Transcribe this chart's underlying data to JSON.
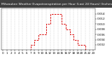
{
  "hours": [
    0,
    1,
    2,
    3,
    4,
    5,
    6,
    7,
    8,
    9,
    10,
    11,
    12,
    13,
    14,
    15,
    16,
    17,
    18,
    19,
    20,
    21,
    22,
    23
  ],
  "values": [
    0.0,
    0.0,
    0.0,
    0.0,
    0.0,
    0.0,
    0.0,
    0.002,
    0.004,
    0.006,
    0.006,
    0.01,
    0.014,
    0.014,
    0.014,
    0.01,
    0.008,
    0.006,
    0.004,
    0.002,
    0.002,
    0.0,
    0.0,
    0.0
  ],
  "line_color": "#dd0000",
  "bg_color": "#ffffff",
  "title": "Milwaukee Weather Evapotranspiration per Hour (Last 24 Hours) (Inches)",
  "title_bg": "#404040",
  "title_color": "#ffffff",
  "ylim": [
    0,
    0.016
  ],
  "ytick_values": [
    0.002,
    0.004,
    0.006,
    0.008,
    0.01,
    0.012,
    0.014
  ],
  "ytick_labels": [
    "0.002",
    "0.004",
    "0.006",
    "0.008",
    "0.010",
    "0.012",
    "0.014"
  ],
  "xtick_labels": [
    "0",
    "1",
    "2",
    "3",
    "4",
    "5",
    "6",
    "7",
    "8",
    "9",
    "10",
    "11",
    "12",
    "13",
    "14",
    "15",
    "16",
    "17",
    "18",
    "19",
    "20",
    "21",
    "22",
    "23"
  ],
  "grid_color": "#aaaaaa",
  "title_fontsize": 3.2,
  "tick_fontsize": 3.0,
  "line_width": 0.7
}
